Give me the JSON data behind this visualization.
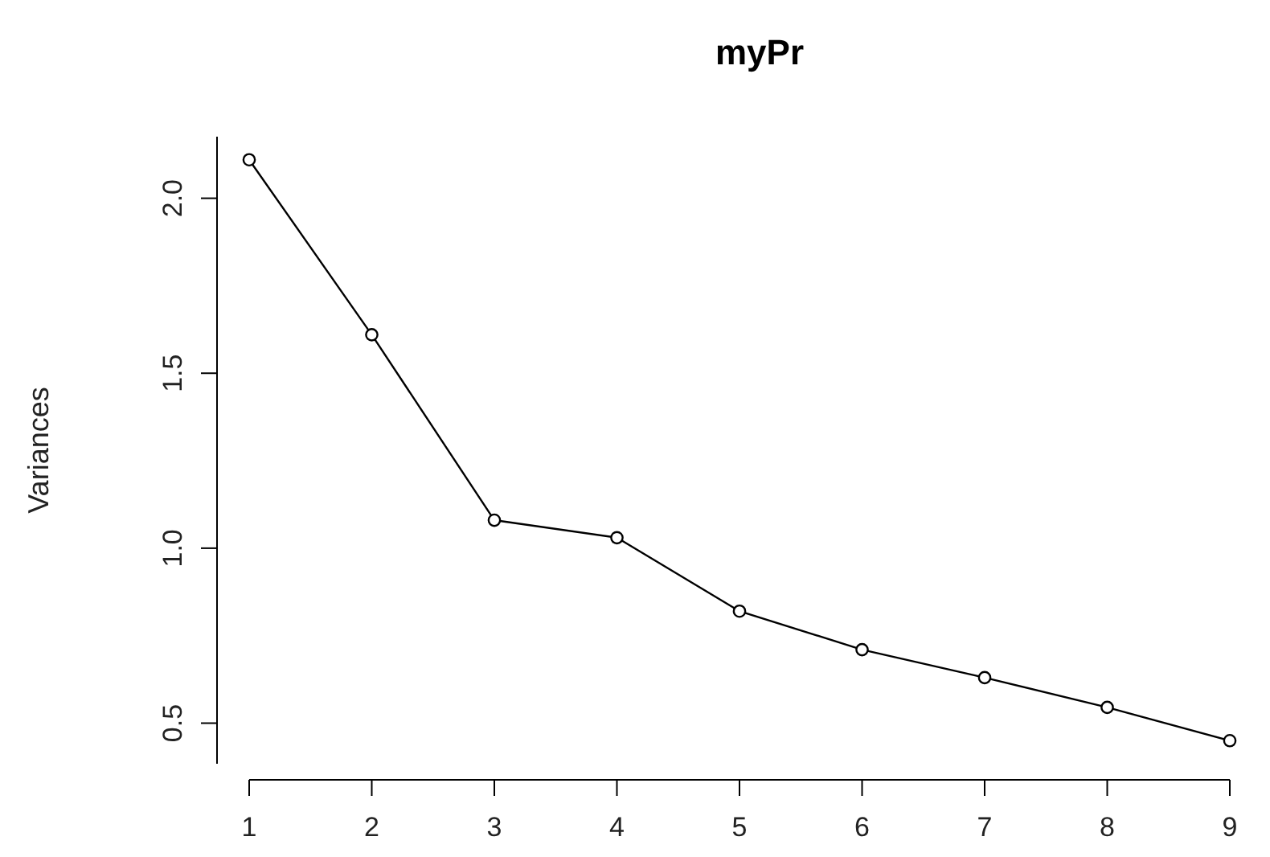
{
  "chart_data": {
    "type": "line",
    "title": "myPr",
    "ylabel": "Variances",
    "categories": [
      "1",
      "2",
      "3",
      "4",
      "5",
      "6",
      "7",
      "8",
      "9"
    ],
    "values": [
      2.11,
      1.61,
      1.08,
      1.03,
      0.82,
      0.71,
      0.63,
      0.545,
      0.45
    ],
    "color": "#000000",
    "marker": "circle",
    "line_style": "solid",
    "ylim": [
      0.384,
      2.176
    ],
    "yticks": [
      0.5,
      {
        "value": 1,
        "label": "1.0"
      },
      1.5,
      {
        "value": 2,
        "label": "2.0"
      }
    ],
    "grid": false
  }
}
